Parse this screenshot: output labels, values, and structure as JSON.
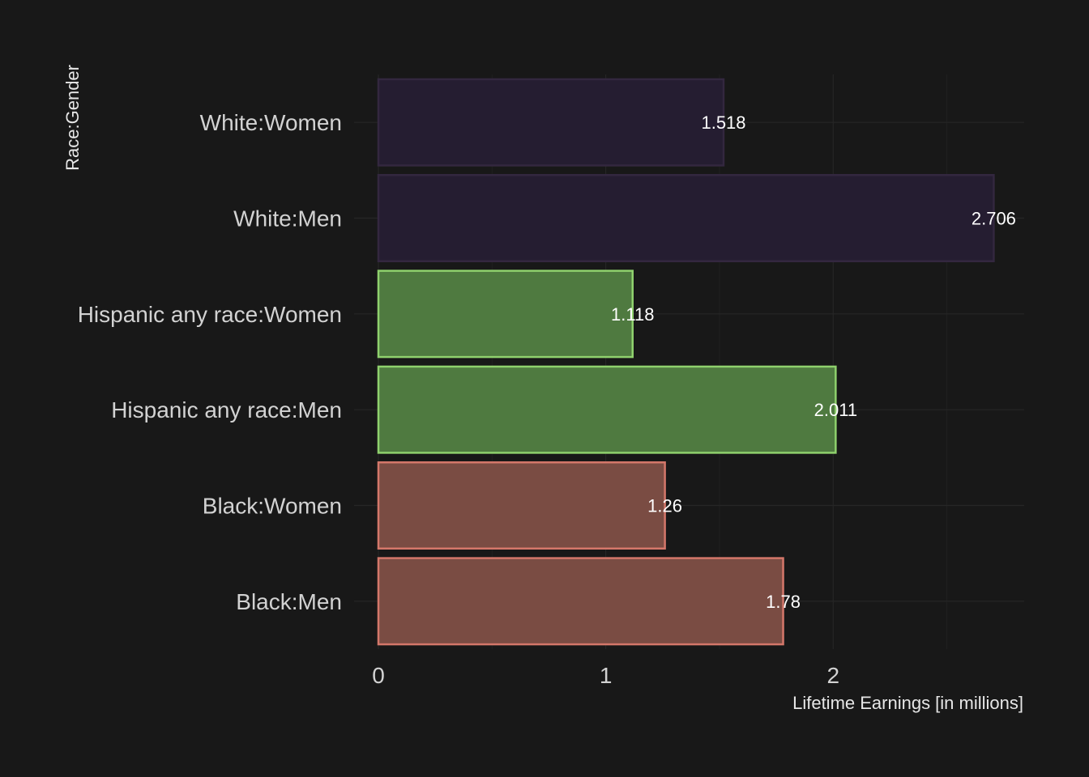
{
  "chart_data": {
    "type": "bar",
    "orientation": "horizontal",
    "title": "",
    "xlabel": "Lifetime Earnings [in millions]",
    "ylabel": "Race:Gender",
    "categories": [
      "Black:Men",
      "Black:Women",
      "Hispanic any race:Men",
      "Hispanic any race:Women",
      "White:Men",
      "White:Women"
    ],
    "values": [
      1.78,
      1.26,
      2.011,
      1.118,
      2.706,
      1.518
    ],
    "data_labels": [
      "1.78",
      "1.26",
      "2.011",
      "1.118",
      "2.706",
      "1.518"
    ],
    "groups": [
      "Black",
      "Black",
      "Hispanic any race",
      "Hispanic any race",
      "White",
      "White"
    ],
    "group_colors": {
      "Black": {
        "fill": "#7a4c43",
        "stroke": "#d4776a"
      },
      "Hispanic any race": {
        "fill": "#4f7a40",
        "stroke": "#8fd16d"
      },
      "White": {
        "fill": "#251d31",
        "stroke": "#33273f"
      }
    },
    "x_ticks": [
      0,
      1,
      2
    ],
    "x_tick_labels": [
      "0",
      "1",
      "2"
    ],
    "xlim": [
      0,
      2.84
    ],
    "grid": true,
    "legend": "none",
    "background": "#181818"
  }
}
